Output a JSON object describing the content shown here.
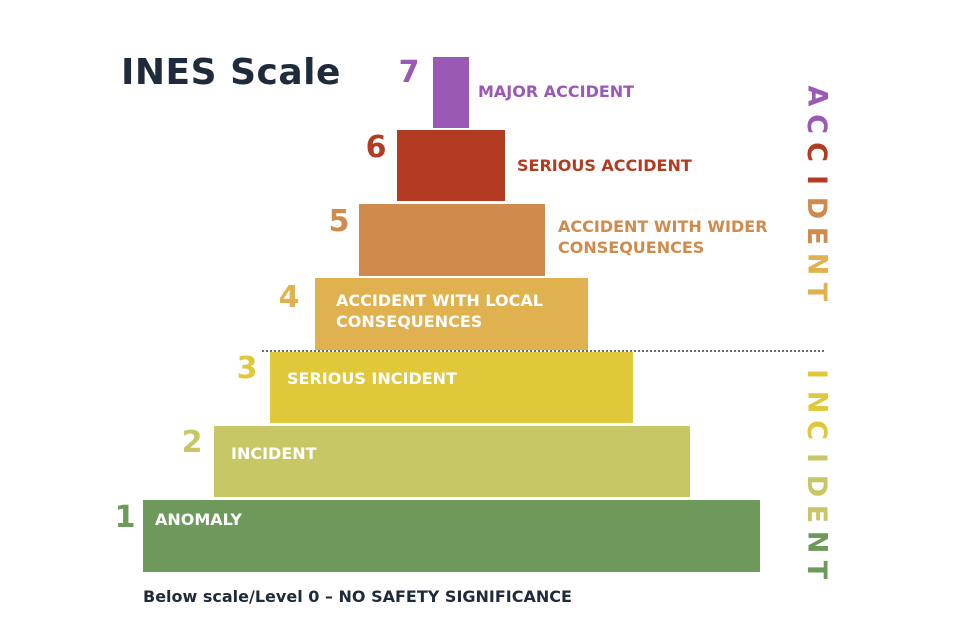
{
  "title": "INES Scale",
  "levels": [
    {
      "number": "7",
      "label": "MAJOR ACCIDENT",
      "color": "#9b59b6"
    },
    {
      "number": "6",
      "label": "SERIOUS ACCIDENT",
      "color": "#b23b22"
    },
    {
      "number": "5",
      "label": "ACCIDENT WITH WIDER\nCONSEQUENCES",
      "color": "#cf8a4c"
    },
    {
      "number": "4",
      "label": "ACCIDENT WITH LOCAL\nCONSEQUENCES",
      "color": "#e0b14f"
    },
    {
      "number": "3",
      "label": "SERIOUS INCIDENT",
      "color": "#e1c83a"
    },
    {
      "number": "2",
      "label": "INCIDENT",
      "color": "#c7c765"
    },
    {
      "number": "1",
      "label": "ANOMALY",
      "color": "#6d9a5a"
    }
  ],
  "side_labels": {
    "accident": "ACCIDENT",
    "incident": "INCIDENT"
  },
  "footer": "Below scale/Level 0 – NO SAFETY SIGNIFICANCE"
}
